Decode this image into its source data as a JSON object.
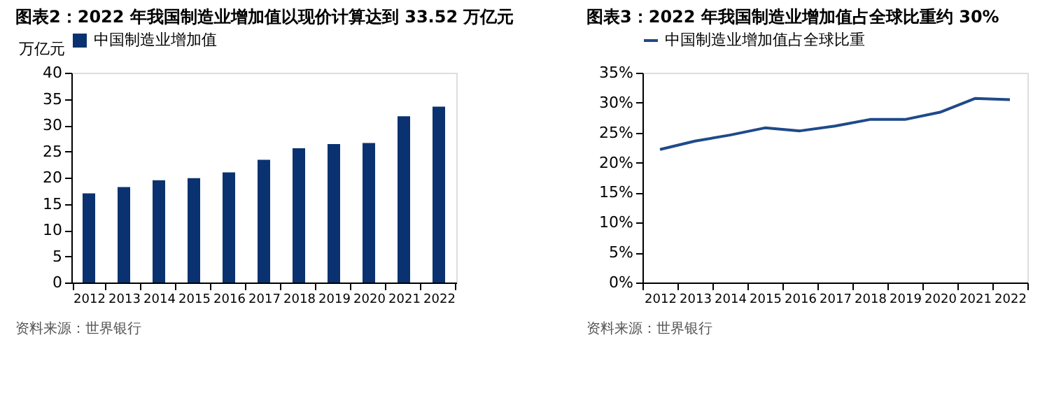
{
  "chart_data": [
    {
      "type": "bar",
      "title": "图表2：2022 年我国制造业增加值以现价计算达到 33.52 万亿元",
      "ylabel": "万亿元",
      "legend": "top",
      "categories": [
        "2012",
        "2013",
        "2014",
        "2015",
        "2016",
        "2017",
        "2018",
        "2019",
        "2020",
        "2021",
        "2022"
      ],
      "series": [
        {
          "name": "中国制造业增加值",
          "color": "#0b3270",
          "values": [
            17.0,
            18.2,
            19.5,
            19.9,
            21.0,
            23.4,
            25.6,
            26.4,
            26.6,
            31.7,
            33.52
          ]
        }
      ],
      "ylim": [
        0,
        40
      ],
      "yticks": [
        0,
        5,
        10,
        15,
        20,
        25,
        30,
        35,
        40
      ],
      "annotations": [
        "资料来源：世界银行"
      ]
    },
    {
      "type": "line",
      "title": "图表3：2022 年我国制造业增加值占全球比重约 30%",
      "legend": "top",
      "categories": [
        "2012",
        "2013",
        "2014",
        "2015",
        "2016",
        "2017",
        "2018",
        "2019",
        "2020",
        "2021",
        "2022"
      ],
      "series": [
        {
          "name": "中国制造业增加值占全球比重",
          "color": "#1f4a8a",
          "values": [
            22.2,
            23.6,
            24.6,
            25.8,
            25.3,
            26.1,
            27.2,
            27.2,
            28.4,
            30.7,
            30.5
          ]
        }
      ],
      "ylim": [
        0,
        35
      ],
      "yticks": [
        {
          "value": 0,
          "label": "0%"
        },
        {
          "value": 5,
          "label": "5%"
        },
        {
          "value": 10,
          "label": "10%"
        },
        {
          "value": 15,
          "label": "15%"
        },
        {
          "value": 20,
          "label": "20%"
        },
        {
          "value": 25,
          "label": "25%"
        },
        {
          "value": 30,
          "label": "30%"
        },
        {
          "value": 35,
          "label": "35%"
        }
      ],
      "annotations": [
        "资料来源：世界银行"
      ]
    }
  ]
}
